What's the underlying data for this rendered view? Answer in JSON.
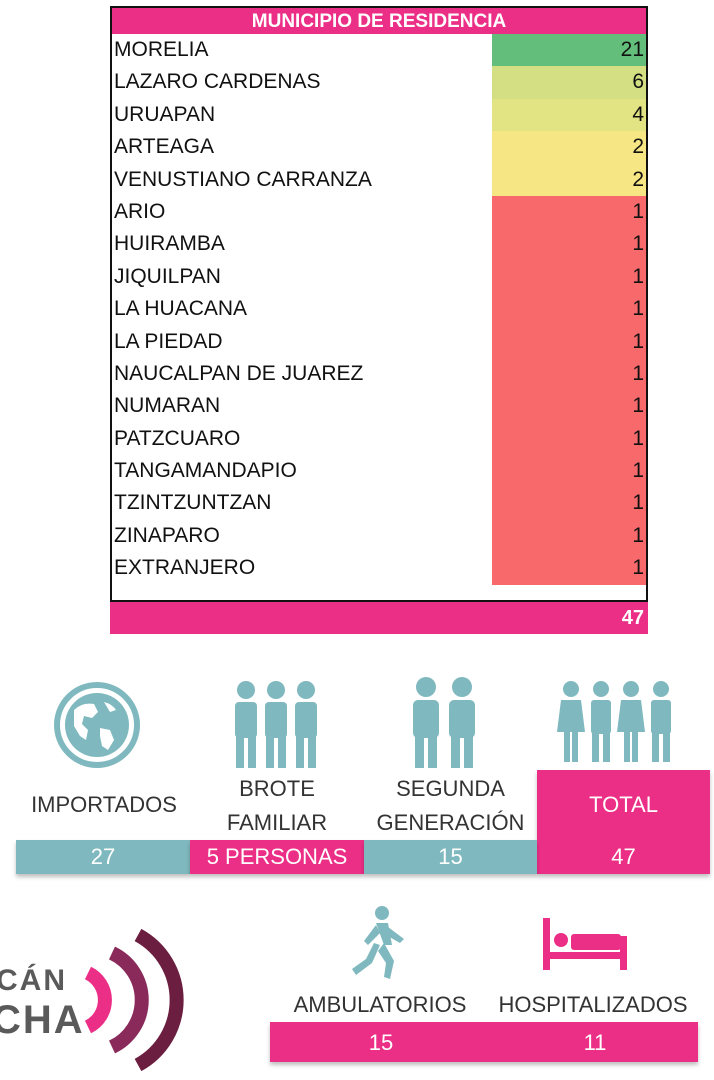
{
  "table": {
    "title": "MUNICIPIO DE RESIDENCIA",
    "rows": [
      {
        "name": "MORELIA",
        "value": "21",
        "color": "#63be7b"
      },
      {
        "name": "LAZARO CARDENAS",
        "value": "6",
        "color": "#d3df82"
      },
      {
        "name": "URUAPAN",
        "value": "4",
        "color": "#e2e383"
      },
      {
        "name": "ARTEAGA",
        "value": "2",
        "color": "#f6e784"
      },
      {
        "name": "VENUSTIANO CARRANZA",
        "value": "2",
        "color": "#f6e784"
      },
      {
        "name": "ARIO",
        "value": "1",
        "color": "#f8696b"
      },
      {
        "name": "HUIRAMBA",
        "value": "1",
        "color": "#f8696b"
      },
      {
        "name": "JIQUILPAN",
        "value": "1",
        "color": "#f8696b"
      },
      {
        "name": "LA HUACANA",
        "value": "1",
        "color": "#f8696b"
      },
      {
        "name": "LA PIEDAD",
        "value": "1",
        "color": "#f8696b"
      },
      {
        "name": "NAUCALPAN DE JUAREZ",
        "value": "1",
        "color": "#f8696b"
      },
      {
        "name": "NUMARAN",
        "value": "1",
        "color": "#f8696b"
      },
      {
        "name": "PATZCUARO",
        "value": "1",
        "color": "#f8696b"
      },
      {
        "name": "TANGAMANDAPIO",
        "value": "1",
        "color": "#f8696b"
      },
      {
        "name": "TZINTZUNTZAN",
        "value": "1",
        "color": "#f8696b"
      },
      {
        "name": "ZINAPARO",
        "value": "1",
        "color": "#f8696b"
      },
      {
        "name": "EXTRANJERO",
        "value": "1",
        "color": "#f8696b"
      }
    ],
    "total": "47"
  },
  "stats": {
    "imported": {
      "label": "IMPORTADOS",
      "value": "27",
      "icon": "globe-icon"
    },
    "family": {
      "label_line1": "BROTE",
      "label_line2": "FAMILIAR",
      "value": "5 PERSONAS",
      "icon": "family-group-icon"
    },
    "second": {
      "label_line1": "SEGUNDA",
      "label_line2": "GENERACIÓN",
      "value": "15",
      "icon": "couple-icon"
    },
    "total": {
      "label": "TOTAL",
      "value": "47",
      "icon": "crowd-icon"
    }
  },
  "care": {
    "ambulatory": {
      "label": "AMBULATORIOS",
      "value": "15",
      "icon": "walking-person-icon"
    },
    "hospitalized": {
      "label": "HOSPITALIZADOS",
      "value": "11",
      "icon": "hospital-bed-icon"
    }
  },
  "logo": {
    "line1": "CÁN",
    "line2": "CHA"
  },
  "colors": {
    "pink": "#ec2f86",
    "teal": "#7fb9bf",
    "wine": "#6b1e3f"
  }
}
